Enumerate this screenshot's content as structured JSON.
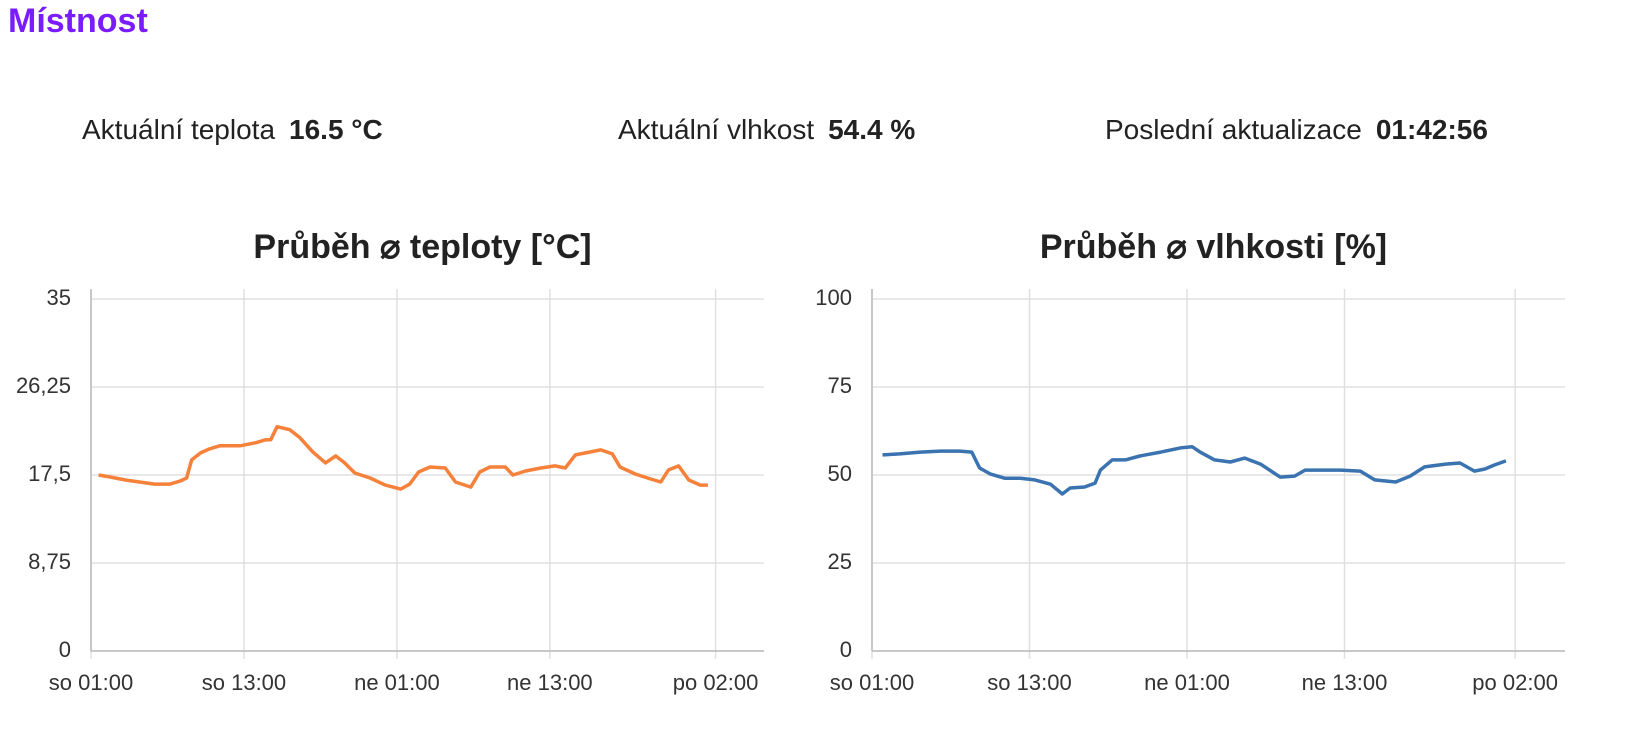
{
  "header": {
    "title": "Místnost"
  },
  "stats": [
    {
      "label": "Aktuální teplota",
      "value": "16.5 °C"
    },
    {
      "label": "Aktuální vlhkost",
      "value": "54.4 %"
    },
    {
      "label": "Poslední aktualizace",
      "value": "01:42:56"
    }
  ],
  "chart_data": [
    {
      "type": "line",
      "title": "Průběh ⌀ teploty [°C]",
      "xlim": [
        0,
        52.8
      ],
      "xticks": [
        {
          "value": 0,
          "label": "so 01:00"
        },
        {
          "value": 12,
          "label": "so 13:00"
        },
        {
          "value": 24,
          "label": "ne 01:00"
        },
        {
          "value": 36,
          "label": "ne 13:00"
        },
        {
          "value": 49,
          "label": "po 02:00"
        }
      ],
      "ylim": [
        0,
        35
      ],
      "yticks": [
        0,
        {
          "value": 8.75,
          "label": "8,75"
        },
        {
          "value": 17.5,
          "label": "17,5"
        },
        {
          "value": 26.25,
          "label": "26,25"
        },
        35
      ],
      "grid": true,
      "x": [
        0.6,
        1.5,
        2.7,
        3.8,
        5.0,
        6.2,
        7.0,
        7.5,
        7.9,
        8.6,
        9.3,
        10.1,
        11.7,
        12.9,
        13.7,
        14.1,
        14.6,
        15.6,
        16.4,
        17.4,
        18.4,
        19.2,
        19.9,
        20.7,
        21.9,
        23.1,
        24.3,
        25.0,
        25.7,
        26.6,
        27.8,
        28.6,
        29.8,
        30.5,
        31.3,
        32.5,
        33.1,
        34.1,
        35.3,
        36.4,
        37.2,
        38.0,
        39.2,
        40.0,
        40.9,
        41.5,
        42.7,
        43.9,
        44.7,
        45.3,
        46.1,
        46.9,
        47.8,
        48.4
      ],
      "series": [
        {
          "color": "#f5813a",
          "values": [
            17.5,
            17.3,
            17.0,
            16.8,
            16.6,
            16.6,
            16.9,
            17.2,
            19.0,
            19.7,
            20.1,
            20.4,
            20.4,
            20.7,
            21.0,
            21.0,
            22.3,
            22.0,
            21.2,
            19.8,
            18.7,
            19.4,
            18.7,
            17.7,
            17.2,
            16.5,
            16.1,
            16.6,
            17.8,
            18.3,
            18.2,
            16.8,
            16.3,
            17.8,
            18.3,
            18.3,
            17.5,
            17.9,
            18.2,
            18.4,
            18.2,
            19.5,
            19.8,
            20.0,
            19.6,
            18.3,
            17.6,
            17.1,
            16.8,
            18.0,
            18.4,
            17.0,
            16.5,
            16.5
          ]
        }
      ]
    },
    {
      "type": "line",
      "title": "Průběh ⌀ vlhkosti [%]",
      "xlim": [
        0,
        52.8
      ],
      "xticks": [
        {
          "value": 0,
          "label": "so 01:00"
        },
        {
          "value": 12,
          "label": "so 13:00"
        },
        {
          "value": 24,
          "label": "ne 01:00"
        },
        {
          "value": 36,
          "label": "ne 13:00"
        },
        {
          "value": 49,
          "label": "po 02:00"
        }
      ],
      "ylim": [
        0,
        100
      ],
      "yticks": [
        0,
        25,
        50,
        75,
        100
      ],
      "grid": true,
      "x": [
        0.8,
        2.1,
        3.7,
        5.2,
        6.7,
        7.6,
        8.2,
        9.0,
        10.1,
        11.3,
        12.4,
        13.6,
        14.5,
        15.1,
        16.2,
        17.0,
        17.4,
        18.3,
        19.3,
        20.4,
        22.0,
        23.5,
        24.4,
        25.0,
        26.1,
        27.3,
        28.4,
        29.6,
        31.1,
        32.2,
        33.0,
        34.1,
        35.7,
        37.2,
        38.3,
        39.9,
        41.0,
        42.1,
        43.7,
        44.8,
        45.9,
        46.7,
        47.4,
        48.3
      ],
      "series": [
        {
          "color": "#3b73b0",
          "values": [
            55.7,
            56.0,
            56.5,
            56.8,
            56.8,
            56.5,
            52.0,
            50.3,
            49.1,
            49.1,
            48.6,
            47.4,
            44.6,
            46.3,
            46.6,
            47.7,
            51.4,
            54.3,
            54.3,
            55.4,
            56.5,
            57.7,
            58.0,
            56.5,
            54.3,
            53.7,
            54.8,
            53.1,
            49.4,
            49.7,
            51.4,
            51.4,
            51.4,
            51.1,
            48.6,
            48.0,
            49.7,
            52.3,
            53.1,
            53.4,
            51.1,
            51.7,
            52.8,
            54.0
          ]
        }
      ]
    }
  ]
}
